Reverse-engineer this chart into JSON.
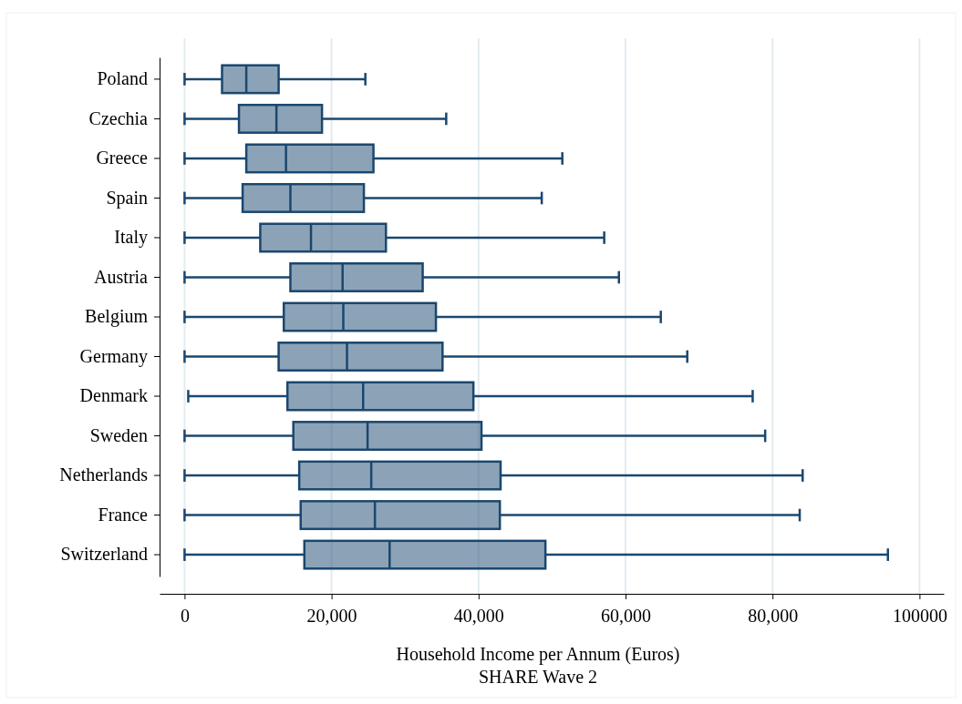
{
  "chart_data": {
    "type": "box",
    "orientation": "horizontal",
    "xlabel": "Household Income per Annum (Euros)",
    "annotations": [
      "SHARE Wave 2"
    ],
    "categories": [
      "Poland",
      "Czechia",
      "Greece",
      "Spain",
      "Italy",
      "Austria",
      "Belgium",
      "Germany",
      "Denmark",
      "Sweden",
      "Netherlands",
      "France",
      "Switzerland"
    ],
    "xlim": [
      -3400,
      103300
    ],
    "xticks": [
      0,
      {
        "value": 20000,
        "label": "20,000"
      },
      {
        "value": 40000,
        "label": "40,000"
      },
      {
        "value": 60000,
        "label": "60,000"
      },
      {
        "value": 80000,
        "label": "80,000"
      },
      100000
    ],
    "grid": "x",
    "series": [
      {
        "color": "#1a476f",
        "boxes": [
          {
            "low": 0,
            "q1": 5100,
            "median": 8400,
            "q3": 12800,
            "high": 24600
          },
          {
            "low": 0,
            "q1": 7400,
            "median": 12500,
            "q3": 18700,
            "high": 35600
          },
          {
            "low": 0,
            "q1": 8400,
            "median": 13800,
            "q3": 25700,
            "high": 51400
          },
          {
            "low": 0,
            "q1": 7900,
            "median": 14400,
            "q3": 24400,
            "high": 48600
          },
          {
            "low": 0,
            "q1": 10300,
            "median": 17200,
            "q3": 27400,
            "high": 57100
          },
          {
            "low": 0,
            "q1": 14400,
            "median": 21500,
            "q3": 32400,
            "high": 59100
          },
          {
            "low": 0,
            "q1": 13500,
            "median": 21600,
            "q3": 34200,
            "high": 64800
          },
          {
            "low": 0,
            "q1": 12800,
            "median": 22100,
            "q3": 35100,
            "high": 68400
          },
          {
            "low": 500,
            "q1": 14000,
            "median": 24300,
            "q3": 39300,
            "high": 77300
          },
          {
            "low": 0,
            "q1": 14800,
            "median": 24900,
            "q3": 40400,
            "high": 79000
          },
          {
            "low": 0,
            "q1": 15600,
            "median": 25400,
            "q3": 43000,
            "high": 84100
          },
          {
            "low": 0,
            "q1": 15800,
            "median": 25900,
            "q3": 42900,
            "high": 83700
          },
          {
            "low": 0,
            "q1": 16300,
            "median": 27900,
            "q3": 49100,
            "high": 95700
          }
        ]
      }
    ]
  }
}
